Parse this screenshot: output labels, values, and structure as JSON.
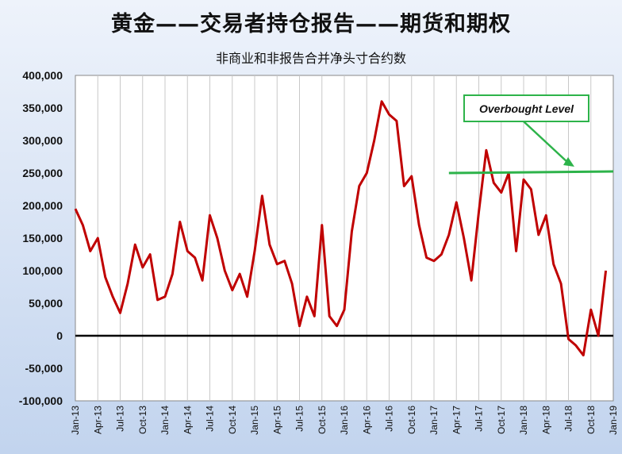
{
  "colors": {
    "series": "#c00000",
    "zero_line": "#000000",
    "overbought": "#2db34a",
    "grid": "#c8c8c8",
    "plot_bg": "#ffffff"
  },
  "chart_data": {
    "type": "line",
    "title": "黄金——交易者持仓报告——期货和期权",
    "subtitle": "非商业和非报告合并净头寸合约数",
    "xlabel": "",
    "ylabel": "",
    "ylim": [
      -100000,
      400000
    ],
    "yticks": [
      -100000,
      -50000,
      0,
      50000,
      100000,
      150000,
      200000,
      250000,
      300000,
      350000,
      400000
    ],
    "ytick_labels": [
      "-100,000",
      "-50,000",
      "0",
      "50,000",
      "100,000",
      "150,000",
      "200,000",
      "250,000",
      "300,000",
      "350,000",
      "400,000"
    ],
    "xlim": [
      "2013-01",
      "2019-01"
    ],
    "xtick_labels": [
      "Jan-13",
      "Apr-13",
      "Jul-13",
      "Oct-13",
      "Jan-14",
      "Apr-14",
      "Jul-14",
      "Oct-14",
      "Jan-15",
      "Apr-15",
      "Jul-15",
      "Oct-15",
      "Jan-16",
      "Apr-16",
      "Jul-16",
      "Oct-16",
      "Jan-17",
      "Apr-17",
      "Jul-17",
      "Oct-17",
      "Jan-18",
      "Apr-18",
      "Jul-18",
      "Oct-18",
      "Jan-19"
    ],
    "grid": "vertical",
    "zero_line": true,
    "series": [
      {
        "x": [
          "2013-01",
          "2013-02",
          "2013-03",
          "2013-04",
          "2013-05",
          "2013-06",
          "2013-07",
          "2013-08",
          "2013-09",
          "2013-10",
          "2013-11",
          "2013-12",
          "2014-01",
          "2014-02",
          "2014-03",
          "2014-04",
          "2014-05",
          "2014-06",
          "2014-07",
          "2014-08",
          "2014-09",
          "2014-10",
          "2014-11",
          "2014-12",
          "2015-01",
          "2015-02",
          "2015-03",
          "2015-04",
          "2015-05",
          "2015-06",
          "2015-07",
          "2015-08",
          "2015-09",
          "2015-10",
          "2015-11",
          "2015-12",
          "2016-01",
          "2016-02",
          "2016-03",
          "2016-04",
          "2016-05",
          "2016-06",
          "2016-07",
          "2016-08",
          "2016-09",
          "2016-10",
          "2016-11",
          "2016-12",
          "2017-01",
          "2017-02",
          "2017-03",
          "2017-04",
          "2017-05",
          "2017-06",
          "2017-07",
          "2017-08",
          "2017-09",
          "2017-10",
          "2017-11",
          "2017-12",
          "2018-01",
          "2018-02",
          "2018-03",
          "2018-04",
          "2018-05",
          "2018-06",
          "2018-07",
          "2018-08",
          "2018-09",
          "2018-10",
          "2018-11",
          "2018-12"
        ],
        "values": [
          195000,
          170000,
          130000,
          150000,
          90000,
          60000,
          35000,
          80000,
          140000,
          105000,
          125000,
          55000,
          60000,
          95000,
          175000,
          130000,
          120000,
          85000,
          185000,
          150000,
          100000,
          70000,
          95000,
          60000,
          130000,
          215000,
          140000,
          110000,
          115000,
          80000,
          15000,
          60000,
          30000,
          170000,
          30000,
          15000,
          40000,
          160000,
          230000,
          250000,
          300000,
          360000,
          340000,
          330000,
          230000,
          245000,
          170000,
          120000,
          115000,
          125000,
          155000,
          205000,
          150000,
          85000,
          190000,
          285000,
          235000,
          220000,
          250000,
          130000,
          240000,
          225000,
          155000,
          185000,
          110000,
          80000,
          -5000,
          -15000,
          -30000,
          40000,
          0,
          100000
        ]
      }
    ],
    "annotations": [
      {
        "label": "Overbought Level",
        "type": "horizontal-line",
        "y": 250000,
        "x_start": "2017-03",
        "x_end": "2019-01"
      }
    ]
  }
}
